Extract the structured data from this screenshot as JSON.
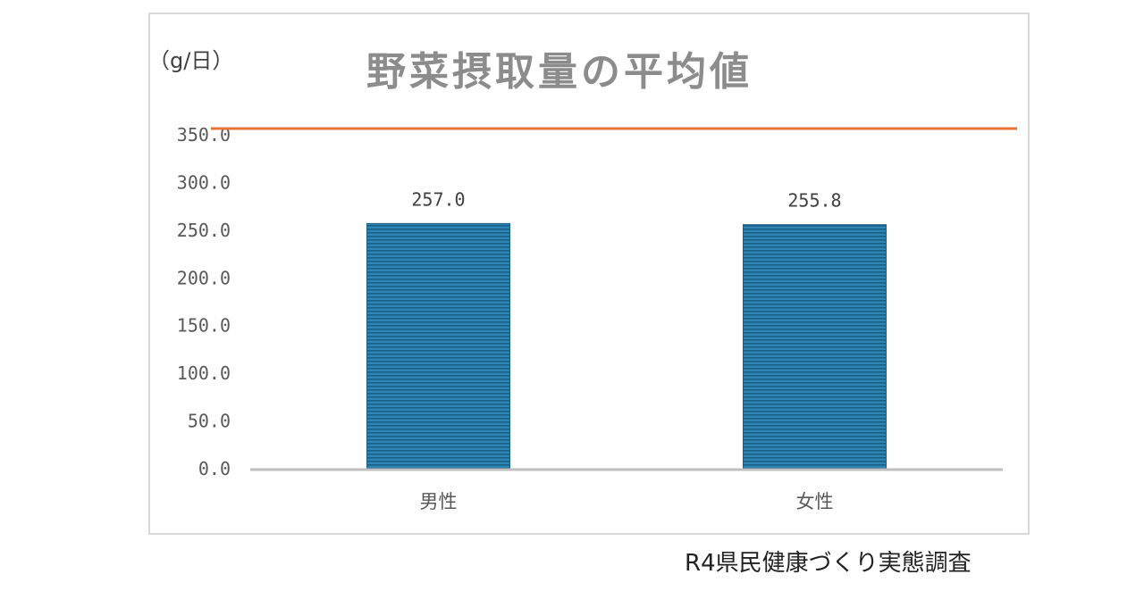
{
  "chart_data": {
    "type": "bar",
    "title": "野菜摂取量の平均値",
    "unit_label": "（g/日）",
    "categories": [
      "男性",
      "女性"
    ],
    "values": [
      257.0,
      255.8
    ],
    "value_labels": [
      "257.0",
      "255.8"
    ],
    "ylim": [
      0,
      350
    ],
    "yticks": [
      0,
      50,
      100,
      150,
      200,
      250,
      300,
      350
    ],
    "ytick_labels": [
      "0.0",
      "50.0",
      "100.0",
      "150.0",
      "200.0",
      "250.0",
      "300.0",
      "350.0"
    ],
    "reference_line": {
      "value": 350
    },
    "grid": false,
    "legend": "none",
    "colors": {
      "bar": "#2e86b4",
      "bar_stripe": "#1a5f85",
      "reference_line": "#e8743b",
      "axis": "#bfbfbf"
    }
  },
  "source_note": "R4県民健康づくり実態調査"
}
